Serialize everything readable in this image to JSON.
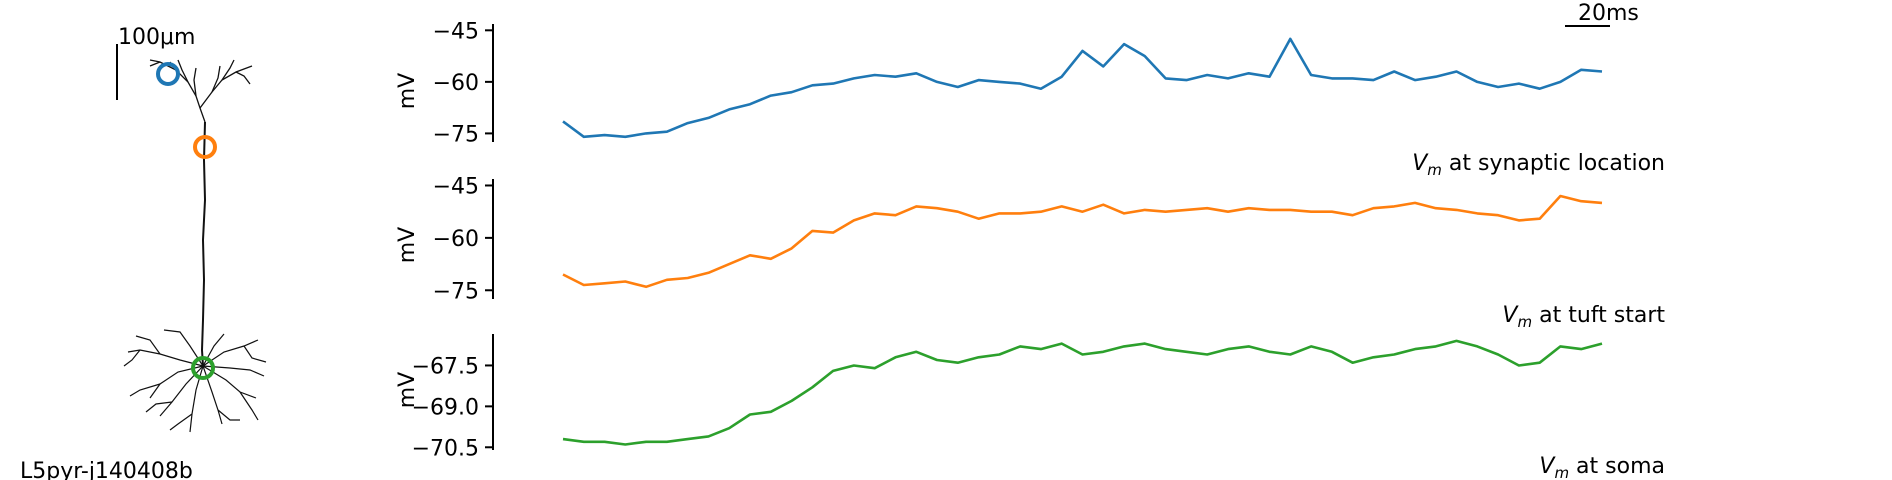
{
  "neuron_panel": {
    "scale_bar_label": "100μm",
    "cell_name": "L5pyr-j140408b",
    "markers": [
      {
        "name": "synaptic",
        "color": "#1f77b4"
      },
      {
        "name": "tuft",
        "color": "#ff7f0e"
      },
      {
        "name": "soma",
        "color": "#2ca02c"
      }
    ]
  },
  "time_scale_bar_label": "20ms",
  "chart_data": [
    {
      "type": "line",
      "ylabel": "mV",
      "yticks": [
        -45,
        -60,
        -75
      ],
      "ytick_labels": [
        "−45",
        "−60",
        "−75"
      ],
      "ylim": [
        -77.5,
        -42
      ],
      "xlim": [
        0,
        100
      ],
      "series": [
        {
          "name": "Vm at synaptic location",
          "label_parts": [
            "V",
            "m",
            " at synaptic location"
          ],
          "color": "#1f77b4",
          "x": [
            0,
            2,
            4,
            6,
            8,
            10,
            12,
            14,
            16,
            18,
            20,
            22,
            24,
            26,
            28,
            30,
            32,
            34,
            36,
            38,
            40,
            42,
            44,
            46,
            48,
            50,
            52,
            54,
            56,
            58,
            60,
            62,
            64,
            66,
            68,
            70,
            72,
            74,
            76,
            78,
            80,
            82,
            84,
            86,
            88,
            90,
            92,
            94,
            96,
            98,
            100
          ],
          "y": [
            -71.5,
            -76.0,
            -75.5,
            -76.0,
            -75.0,
            -74.5,
            -72.0,
            -70.5,
            -68.0,
            -66.5,
            -64.0,
            -63.0,
            -61.0,
            -60.5,
            -59.0,
            -58.0,
            -58.5,
            -57.5,
            -60.0,
            -61.5,
            -59.5,
            -60.0,
            -60.5,
            -62.0,
            -58.5,
            -51.0,
            -55.5,
            -49.0,
            -52.5,
            -59.0,
            -59.5,
            -58.0,
            -59.0,
            -57.5,
            -58.5,
            -47.5,
            -58.0,
            -59.0,
            -59.0,
            -59.5,
            -57.0,
            -59.5,
            -58.5,
            -57.0,
            -60.0,
            -61.5,
            -60.5,
            -62.0,
            -60.0,
            -56.5,
            -57.0
          ]
        }
      ]
    },
    {
      "type": "line",
      "ylabel": "mV",
      "yticks": [
        -45,
        -60,
        -75
      ],
      "ytick_labels": [
        "−45",
        "−60",
        "−75"
      ],
      "ylim": [
        -77.5,
        -42
      ],
      "xlim": [
        0,
        100
      ],
      "series": [
        {
          "name": "Vm at tuft start",
          "label_parts": [
            "V",
            "m",
            " at tuft start"
          ],
          "color": "#ff7f0e",
          "x": [
            0,
            2,
            4,
            6,
            8,
            10,
            12,
            14,
            16,
            18,
            20,
            22,
            24,
            26,
            28,
            30,
            32,
            34,
            36,
            38,
            40,
            42,
            44,
            46,
            48,
            50,
            52,
            54,
            56,
            58,
            60,
            62,
            64,
            66,
            68,
            70,
            72,
            74,
            76,
            78,
            80,
            82,
            84,
            86,
            88,
            90,
            92,
            94,
            96,
            98,
            100
          ],
          "y": [
            -70.5,
            -73.5,
            -73.0,
            -72.5,
            -74.0,
            -72.0,
            -71.5,
            -70.0,
            -67.5,
            -65.0,
            -66.0,
            -63.0,
            -58.0,
            -58.5,
            -55.0,
            -53.0,
            -53.5,
            -51.0,
            -51.5,
            -52.5,
            -54.5,
            -53.0,
            -53.0,
            -52.5,
            -51.0,
            -52.5,
            -50.5,
            -53.0,
            -52.0,
            -52.5,
            -52.0,
            -51.5,
            -52.5,
            -51.5,
            -52.0,
            -52.0,
            -52.5,
            -52.5,
            -53.5,
            -51.5,
            -51.0,
            -50.0,
            -51.5,
            -52.0,
            -53.0,
            -53.5,
            -55.0,
            -54.5,
            -48.0,
            -49.5,
            -50.0
          ]
        }
      ]
    },
    {
      "type": "line",
      "ylabel": "mV",
      "yticks": [
        -67.5,
        -69.0,
        -70.5
      ],
      "ytick_labels": [
        "−67.5",
        "−69.0",
        "−70.5"
      ],
      "ylim": [
        -70.6,
        -66.2
      ],
      "xlim": [
        0,
        100
      ],
      "series": [
        {
          "name": "Vm at soma",
          "label_parts": [
            "V",
            "m",
            " at soma"
          ],
          "color": "#2ca02c",
          "x": [
            0,
            2,
            4,
            6,
            8,
            10,
            12,
            14,
            16,
            18,
            20,
            22,
            24,
            26,
            28,
            30,
            32,
            34,
            36,
            38,
            40,
            42,
            44,
            46,
            48,
            50,
            52,
            54,
            56,
            58,
            60,
            62,
            64,
            66,
            68,
            70,
            72,
            74,
            76,
            78,
            80,
            82,
            84,
            86,
            88,
            90,
            92,
            94,
            96,
            98,
            100
          ],
          "y": [
            -70.2,
            -70.3,
            -70.3,
            -70.4,
            -70.3,
            -70.3,
            -70.2,
            -70.1,
            -69.8,
            -69.3,
            -69.2,
            -68.8,
            -68.3,
            -67.7,
            -67.5,
            -67.6,
            -67.2,
            -67.0,
            -67.3,
            -67.4,
            -67.2,
            -67.1,
            -66.8,
            -66.9,
            -66.7,
            -67.1,
            -67.0,
            -66.8,
            -66.7,
            -66.9,
            -67.0,
            -67.1,
            -66.9,
            -66.8,
            -67.0,
            -67.1,
            -66.8,
            -67.0,
            -67.4,
            -67.2,
            -67.1,
            -66.9,
            -66.8,
            -66.6,
            -66.8,
            -67.1,
            -67.5,
            -67.4,
            -66.8,
            -66.9,
            -66.7
          ]
        }
      ]
    }
  ]
}
